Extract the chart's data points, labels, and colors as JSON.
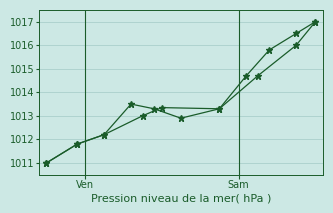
{
  "xlabel": "Pression niveau de la mer( hPa )",
  "bg_color": "#cce8e4",
  "grid_color": "#aad0cc",
  "line_color": "#1a5c2a",
  "ylim": [
    1010.5,
    1017.5
  ],
  "yticks": [
    1011,
    1012,
    1013,
    1014,
    1015,
    1016,
    1017
  ],
  "xlim": [
    -0.2,
    7.2
  ],
  "ven_x": 1.0,
  "sam_x": 5.0,
  "line1_x": [
    0,
    0.8,
    1.5,
    2.5,
    3.0,
    4.5,
    5.5,
    6.5,
    7.0
  ],
  "line1_y": [
    1011.0,
    1011.8,
    1012.2,
    1013.0,
    1013.35,
    1013.3,
    1014.7,
    1016.0,
    1017.0
  ],
  "line2_x": [
    0,
    0.8,
    1.5,
    2.2,
    2.8,
    3.5,
    4.5,
    5.2,
    5.8,
    6.5,
    7.0
  ],
  "line2_y": [
    1011.0,
    1011.8,
    1012.2,
    1013.5,
    1013.3,
    1012.9,
    1013.3,
    1014.7,
    1015.8,
    1016.5,
    1017.0
  ],
  "marker1_x": [
    0,
    0.8,
    1.5,
    2.5,
    3.0,
    4.5,
    5.5,
    6.5,
    7.0
  ],
  "marker1_y": [
    1011.0,
    1011.8,
    1012.2,
    1013.0,
    1013.35,
    1013.3,
    1014.7,
    1016.0,
    1017.0
  ],
  "marker2_x": [
    0,
    0.8,
    1.5,
    2.2,
    2.8,
    3.5,
    4.5,
    5.2,
    5.8,
    6.5,
    7.0
  ],
  "marker2_y": [
    1011.0,
    1011.8,
    1012.2,
    1013.5,
    1013.3,
    1012.9,
    1013.3,
    1014.7,
    1015.8,
    1016.5,
    1017.0
  ]
}
